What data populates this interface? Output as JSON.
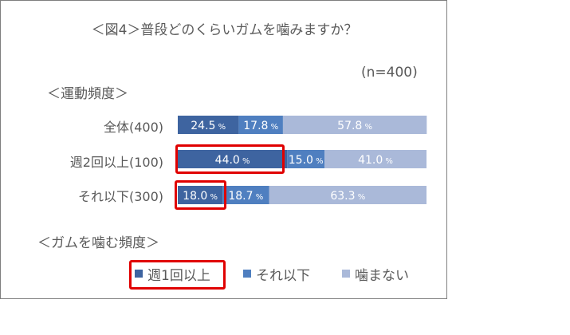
{
  "title": "＜図4＞普段どのくらいガムを噛みますか？",
  "sample_note": "(n=400)",
  "yaxis_title": "＜運動頻度＞",
  "legend_title": "＜ガムを噛む頻度＞",
  "colors": {
    "series": [
      "#3e64a0",
      "#4f7fc0",
      "#aab9d9"
    ],
    "highlight": "#e00000"
  },
  "chart_data": {
    "type": "bar",
    "orientation": "horizontal",
    "stacked": "percent",
    "categories": [
      "全体(400)",
      "週2回以上(100)",
      "それ以下(300)"
    ],
    "series": [
      {
        "name": "週1回以上",
        "values": [
          24.5,
          44.0,
          18.0
        ]
      },
      {
        "name": "それ以下",
        "values": [
          17.8,
          15.0,
          18.7
        ]
      },
      {
        "name": "噛まない",
        "values": [
          57.8,
          41.0,
          63.3
        ]
      }
    ],
    "value_suffix": " %",
    "xlim": [
      0,
      100
    ],
    "grid": false,
    "legend_position": "bottom",
    "highlights": [
      {
        "category_index": 1,
        "series_index": 0
      },
      {
        "category_index": 2,
        "series_index": 0
      },
      {
        "legend_index": 0
      }
    ]
  }
}
